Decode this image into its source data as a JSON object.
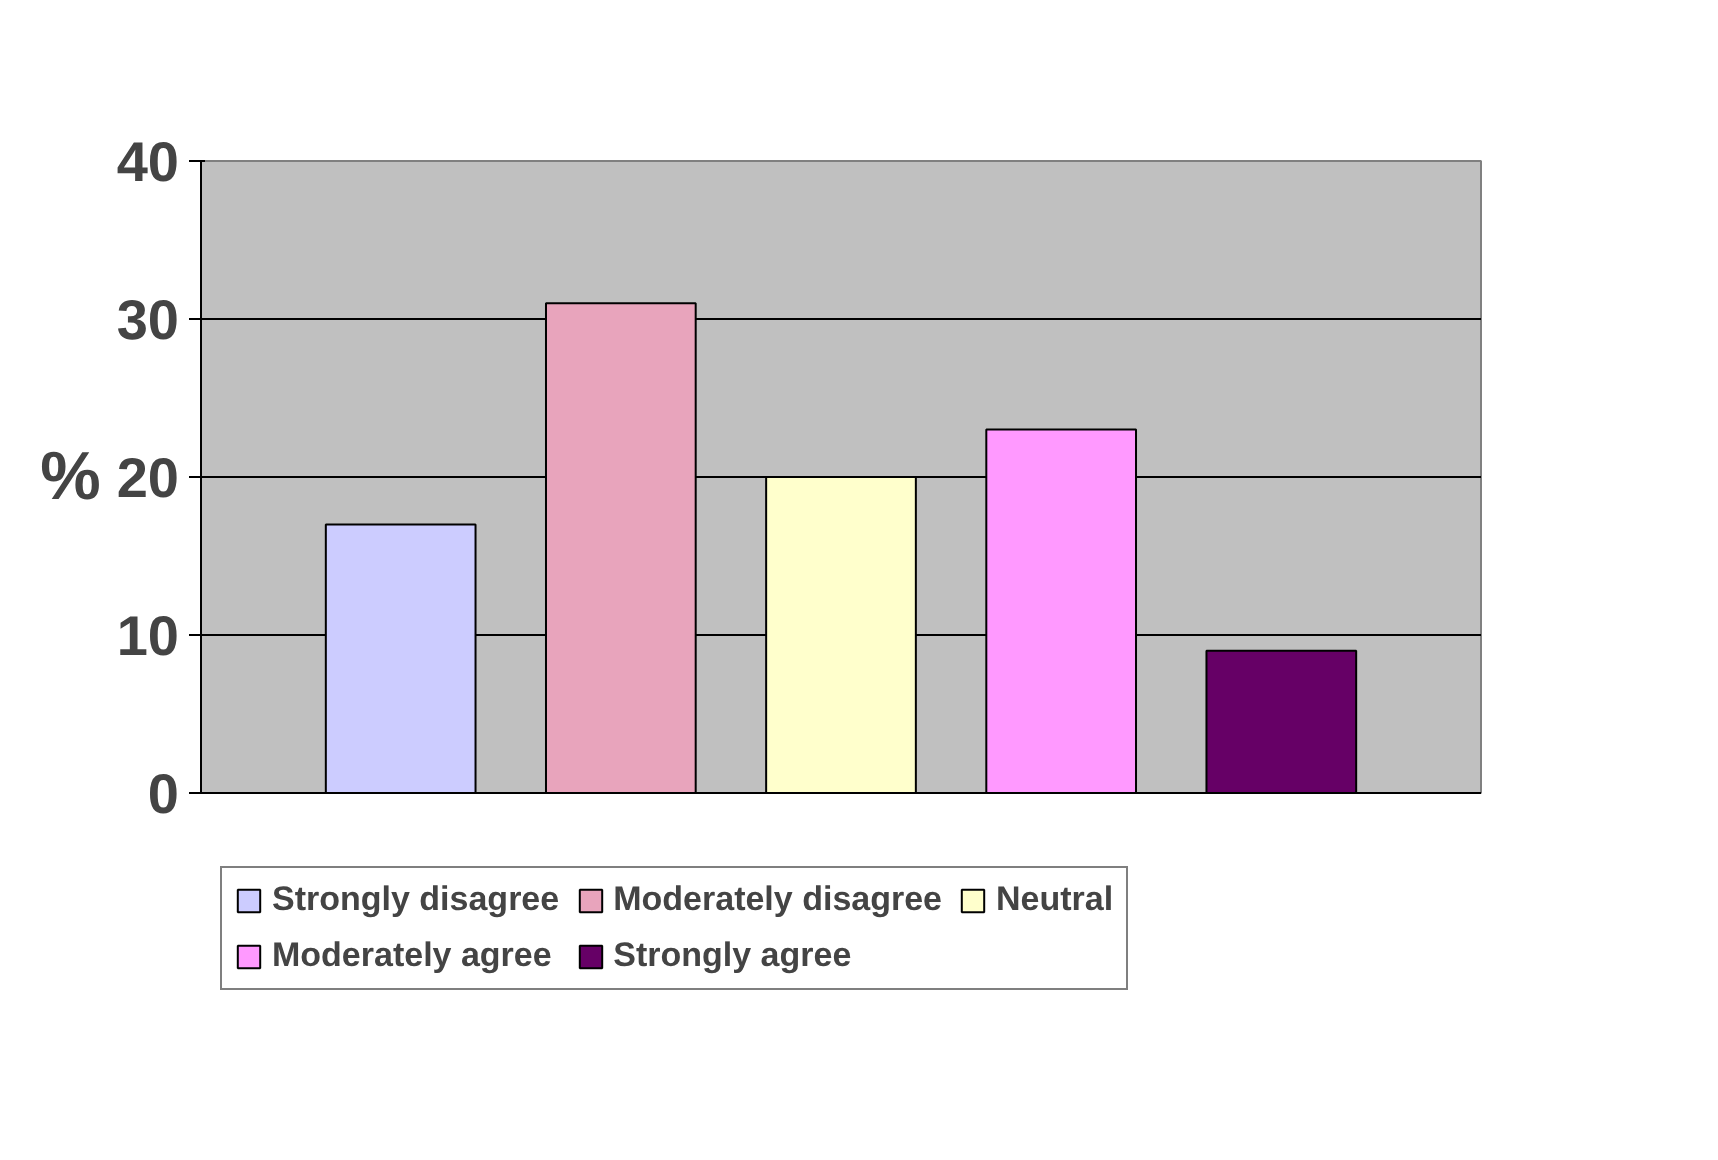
{
  "chart_data": {
    "type": "bar",
    "ylabel": "%",
    "categories": [
      null
    ],
    "series": [
      {
        "name": "Strongly disagree",
        "color": "#ccccff",
        "values": [
          17
        ]
      },
      {
        "name": "Moderately disagree",
        "color": "#e8a4bc",
        "values": [
          31
        ]
      },
      {
        "name": "Neutral",
        "color": "#ffffcc",
        "values": [
          20
        ]
      },
      {
        "name": "Moderately agree",
        "color": "#ff99ff",
        "values": [
          23
        ]
      },
      {
        "name": "Strongly agree",
        "color": "#660066",
        "values": [
          9
        ]
      }
    ],
    "ylim": [
      0,
      40
    ],
    "yticks": [
      0,
      10,
      20,
      30,
      40
    ],
    "grid": "y",
    "legend": "bottom",
    "tick_labels": "y"
  }
}
